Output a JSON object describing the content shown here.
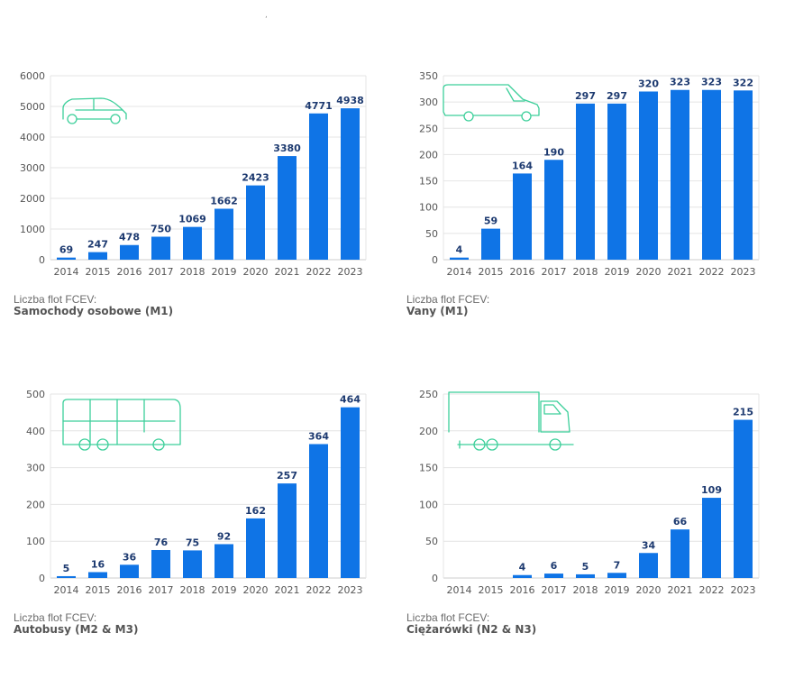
{
  "stray_mark": ",",
  "chart_data": [
    {
      "type": "bar",
      "caption_label": "Liczba flot FCEV:",
      "caption_title": "Samochody osobowe (M1)",
      "icon": "car-icon",
      "categories": [
        "2014",
        "2015",
        "2016",
        "2017",
        "2018",
        "2019",
        "2020",
        "2021",
        "2022",
        "2023"
      ],
      "values": [
        69,
        247,
        478,
        750,
        1069,
        1662,
        2423,
        3380,
        4771,
        4938
      ],
      "ylim": [
        0,
        6000
      ],
      "yticks": [
        0,
        1000,
        2000,
        3000,
        4000,
        5000,
        6000
      ],
      "bar_color": "#0f74e6",
      "grid": true
    },
    {
      "type": "bar",
      "caption_label": "Liczba flot FCEV:",
      "caption_title": "Vany (M1)",
      "icon": "van-icon",
      "categories": [
        "2014",
        "2015",
        "2016",
        "2017",
        "2018",
        "2019",
        "2020",
        "2021",
        "2022",
        "2023"
      ],
      "values": [
        4,
        59,
        164,
        190,
        297,
        297,
        320,
        323,
        323,
        322
      ],
      "ylim": [
        0,
        350
      ],
      "yticks": [
        0,
        50,
        100,
        150,
        200,
        250,
        300,
        350
      ],
      "bar_color": "#0f74e6",
      "grid": true
    },
    {
      "type": "bar",
      "caption_label": "Liczba flot FCEV:",
      "caption_title": "Autobusy (M2 & M3)",
      "icon": "bus-icon",
      "categories": [
        "2014",
        "2015",
        "2016",
        "2017",
        "2018",
        "2019",
        "2020",
        "2021",
        "2022",
        "2023"
      ],
      "values": [
        5,
        16,
        36,
        76,
        75,
        92,
        162,
        257,
        364,
        464
      ],
      "ylim": [
        0,
        500
      ],
      "yticks": [
        0,
        100,
        200,
        300,
        400,
        500
      ],
      "bar_color": "#0f74e6",
      "grid": true
    },
    {
      "type": "bar",
      "caption_label": "Liczba flot FCEV:",
      "caption_title": "Ciężarówki (N2 & N3)",
      "icon": "truck-icon",
      "categories": [
        "2014",
        "2015",
        "2016",
        "2017",
        "2018",
        "2019",
        "2020",
        "2021",
        "2022",
        "2023"
      ],
      "values": [
        null,
        null,
        4,
        6,
        5,
        7,
        34,
        66,
        109,
        215
      ],
      "ylim": [
        0,
        250
      ],
      "yticks": [
        0,
        50,
        100,
        150,
        200,
        250
      ],
      "bar_color": "#0f74e6",
      "grid": true
    }
  ]
}
